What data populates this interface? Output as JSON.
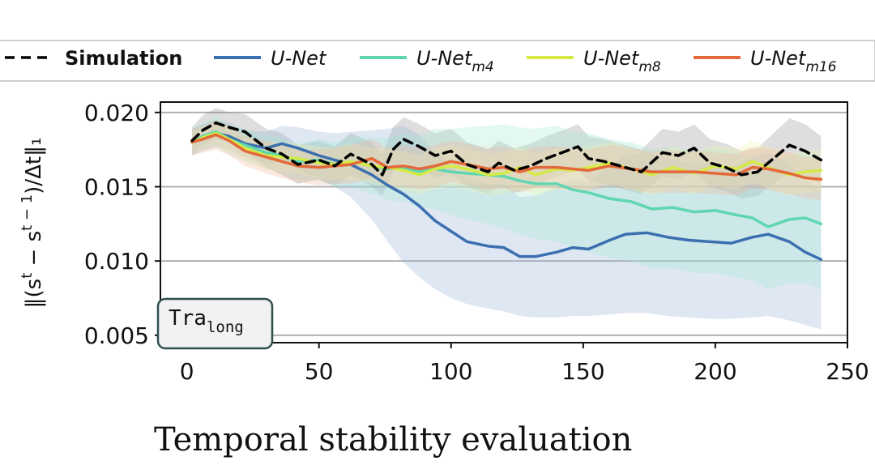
{
  "chart_data": {
    "type": "line",
    "title": "",
    "xlabel": "",
    "ylabel": "‖(s^t − s^(t−1))/Δt‖₁",
    "ylabel_parts": {
      "prefix": "‖(s",
      "sup1": "t",
      "mid": " − s",
      "sup2": "t − 1",
      "suffix": ")/Δt‖₁"
    },
    "xlim": [
      -10,
      250
    ],
    "ylim": [
      0.0045,
      0.0207
    ],
    "xticks": [
      0,
      50,
      100,
      150,
      200,
      250
    ],
    "yticks": [
      0.005,
      0.01,
      0.015,
      0.02
    ],
    "ytick_labels": [
      "0.005",
      "0.010",
      "0.015",
      "0.020"
    ],
    "grid": "horizontal",
    "legend_position": "top",
    "badge": {
      "text": "Tra",
      "subscript": "long"
    },
    "series": [
      {
        "name": "Simulation",
        "color": "#000000",
        "dashed": true,
        "x": [
          2,
          6,
          11,
          16,
          22,
          30,
          36,
          42,
          50,
          56,
          62,
          70,
          74,
          78,
          82,
          88,
          94,
          100,
          106,
          114,
          118,
          124,
          130,
          136,
          142,
          148,
          152,
          158,
          164,
          172,
          180,
          186,
          192,
          198,
          204,
          210,
          216,
          222,
          228,
          234,
          240
        ],
        "y": [
          0.0181,
          0.0188,
          0.0193,
          0.019,
          0.0187,
          0.0176,
          0.0172,
          0.0165,
          0.0168,
          0.0164,
          0.0172,
          0.0165,
          0.0158,
          0.0175,
          0.0182,
          0.0177,
          0.0171,
          0.0174,
          0.0165,
          0.016,
          0.0166,
          0.0161,
          0.0164,
          0.0169,
          0.0173,
          0.0177,
          0.0169,
          0.0167,
          0.0164,
          0.016,
          0.0173,
          0.0171,
          0.0176,
          0.0166,
          0.0163,
          0.0158,
          0.016,
          0.0169,
          0.0178,
          0.0174,
          0.0168
        ],
        "band_low": [
          0.0172,
          0.0178,
          0.0182,
          0.018,
          0.0175,
          0.0163,
          0.0158,
          0.0152,
          0.0155,
          0.0151,
          0.0158,
          0.015,
          0.0144,
          0.016,
          0.0167,
          0.0162,
          0.0156,
          0.0159,
          0.015,
          0.0145,
          0.0151,
          0.0146,
          0.0149,
          0.0154,
          0.0158,
          0.0162,
          0.0154,
          0.0152,
          0.0149,
          0.0145,
          0.0157,
          0.0155,
          0.016,
          0.015,
          0.0147,
          0.0142,
          0.0144,
          0.0152,
          0.016,
          0.0156,
          0.0152
        ],
        "band_high": [
          0.019,
          0.0198,
          0.0203,
          0.02,
          0.0199,
          0.0189,
          0.0186,
          0.0178,
          0.0181,
          0.0177,
          0.0186,
          0.018,
          0.0172,
          0.019,
          0.0197,
          0.0192,
          0.0186,
          0.0189,
          0.018,
          0.0175,
          0.0181,
          0.0176,
          0.0179,
          0.0184,
          0.0188,
          0.0192,
          0.0184,
          0.0182,
          0.0179,
          0.0175,
          0.0189,
          0.0187,
          0.0192,
          0.0182,
          0.0179,
          0.0174,
          0.0176,
          0.0186,
          0.0196,
          0.0192,
          0.0184
        ],
        "band_color": "#888888"
      },
      {
        "name": "U-Net",
        "color": "#3b6fb0",
        "dashed": false,
        "x": [
          2,
          6,
          11,
          16,
          22,
          30,
          36,
          42,
          50,
          56,
          62,
          70,
          76,
          82,
          88,
          94,
          100,
          106,
          114,
          120,
          126,
          132,
          140,
          146,
          152,
          160,
          166,
          174,
          182,
          190,
          198,
          206,
          214,
          220,
          228,
          234,
          240
        ],
        "y": [
          0.018,
          0.0183,
          0.0186,
          0.0184,
          0.0179,
          0.0176,
          0.0179,
          0.0176,
          0.0171,
          0.0168,
          0.0165,
          0.0158,
          0.0151,
          0.0145,
          0.0137,
          0.0127,
          0.012,
          0.0113,
          0.011,
          0.0109,
          0.0103,
          0.0103,
          0.0106,
          0.0109,
          0.0108,
          0.0114,
          0.0118,
          0.0119,
          0.0116,
          0.0114,
          0.0113,
          0.0112,
          0.0116,
          0.0118,
          0.0113,
          0.0106,
          0.0101
        ],
        "band_low": [
          0.0171,
          0.0174,
          0.0177,
          0.0175,
          0.017,
          0.0165,
          0.0167,
          0.0162,
          0.0155,
          0.015,
          0.0143,
          0.0128,
          0.0113,
          0.0099,
          0.0089,
          0.0081,
          0.0075,
          0.0071,
          0.0068,
          0.0066,
          0.0063,
          0.0062,
          0.0062,
          0.0063,
          0.0063,
          0.0064,
          0.0065,
          0.0065,
          0.0063,
          0.0062,
          0.0061,
          0.0061,
          0.0062,
          0.0063,
          0.006,
          0.0057,
          0.0054
        ],
        "band_high": [
          0.0189,
          0.0192,
          0.0195,
          0.0193,
          0.0188,
          0.0187,
          0.0191,
          0.019,
          0.0187,
          0.0186,
          0.0187,
          0.0188,
          0.0189,
          0.0191,
          0.0185,
          0.0173,
          0.0165,
          0.0155,
          0.0152,
          0.0152,
          0.0143,
          0.0144,
          0.015,
          0.0155,
          0.0153,
          0.0164,
          0.0171,
          0.0173,
          0.0169,
          0.0166,
          0.0165,
          0.0163,
          0.017,
          0.0173,
          0.0166,
          0.0155,
          0.0148
        ],
        "band_color": "#9db3d9"
      },
      {
        "name": "U-Net_m4",
        "name_base": "U-Net",
        "name_sub": "m4",
        "color": "#5fd6b0",
        "dashed": false,
        "x": [
          2,
          6,
          11,
          16,
          22,
          30,
          36,
          42,
          50,
          56,
          62,
          70,
          76,
          82,
          88,
          94,
          100,
          106,
          114,
          120,
          126,
          132,
          140,
          146,
          152,
          160,
          168,
          176,
          184,
          192,
          200,
          208,
          214,
          220,
          228,
          234,
          240
        ],
        "y": [
          0.018,
          0.0184,
          0.0187,
          0.0182,
          0.0178,
          0.0173,
          0.0171,
          0.0167,
          0.0168,
          0.0165,
          0.0167,
          0.0164,
          0.0162,
          0.0163,
          0.016,
          0.0162,
          0.016,
          0.0159,
          0.0158,
          0.0157,
          0.0154,
          0.0152,
          0.0152,
          0.0148,
          0.0146,
          0.0142,
          0.014,
          0.0135,
          0.0136,
          0.0133,
          0.0134,
          0.0131,
          0.0129,
          0.0123,
          0.0128,
          0.0129,
          0.0125
        ],
        "band_low": [
          0.0171,
          0.0175,
          0.0177,
          0.0172,
          0.0167,
          0.0162,
          0.0159,
          0.0155,
          0.0154,
          0.015,
          0.015,
          0.0145,
          0.0141,
          0.014,
          0.0136,
          0.0135,
          0.0131,
          0.0128,
          0.0125,
          0.0122,
          0.0118,
          0.0115,
          0.0113,
          0.0109,
          0.0106,
          0.0102,
          0.01,
          0.0095,
          0.0095,
          0.0092,
          0.0092,
          0.0089,
          0.0087,
          0.0081,
          0.0085,
          0.0085,
          0.0081
        ],
        "band_high": [
          0.0189,
          0.0193,
          0.0197,
          0.0192,
          0.0189,
          0.0184,
          0.0183,
          0.0179,
          0.0182,
          0.018,
          0.0184,
          0.0183,
          0.0183,
          0.0186,
          0.0184,
          0.0189,
          0.0189,
          0.019,
          0.0191,
          0.0192,
          0.019,
          0.0189,
          0.0191,
          0.0187,
          0.0186,
          0.0182,
          0.018,
          0.0175,
          0.0177,
          0.0174,
          0.0176,
          0.0173,
          0.0171,
          0.0165,
          0.0171,
          0.0173,
          0.0169
        ],
        "band_color": "#a6e8d3"
      },
      {
        "name": "U-Net_m8",
        "name_base": "U-Net",
        "name_sub": "m8",
        "color": "#d5ea45",
        "dashed": false,
        "x": [
          2,
          6,
          11,
          16,
          22,
          30,
          36,
          42,
          50,
          56,
          62,
          70,
          76,
          82,
          88,
          94,
          100,
          106,
          114,
          120,
          126,
          132,
          140,
          146,
          152,
          160,
          168,
          176,
          184,
          192,
          200,
          208,
          214,
          220,
          228,
          234,
          240
        ],
        "y": [
          0.018,
          0.0183,
          0.0186,
          0.0182,
          0.0176,
          0.0171,
          0.017,
          0.0169,
          0.0166,
          0.0165,
          0.0167,
          0.0164,
          0.0163,
          0.0161,
          0.0158,
          0.0162,
          0.0164,
          0.0162,
          0.0158,
          0.0159,
          0.0163,
          0.0158,
          0.0162,
          0.0161,
          0.0163,
          0.0166,
          0.0162,
          0.0158,
          0.0163,
          0.0159,
          0.0164,
          0.0162,
          0.0167,
          0.0163,
          0.0158,
          0.016,
          0.0161
        ],
        "band_low": [
          0.0173,
          0.0176,
          0.0178,
          0.0174,
          0.0168,
          0.0162,
          0.016,
          0.0159,
          0.0155,
          0.0154,
          0.0155,
          0.0152,
          0.015,
          0.0148,
          0.0145,
          0.0148,
          0.015,
          0.0148,
          0.0144,
          0.0145,
          0.0149,
          0.0144,
          0.0148,
          0.0147,
          0.0149,
          0.0152,
          0.0148,
          0.0144,
          0.0149,
          0.0145,
          0.015,
          0.0148,
          0.0153,
          0.0149,
          0.0144,
          0.0146,
          0.0147
        ],
        "band_high": [
          0.0187,
          0.019,
          0.0194,
          0.019,
          0.0184,
          0.018,
          0.018,
          0.0179,
          0.0177,
          0.0176,
          0.0179,
          0.0176,
          0.0176,
          0.0174,
          0.0171,
          0.0176,
          0.0178,
          0.0176,
          0.0172,
          0.0173,
          0.0177,
          0.0172,
          0.0176,
          0.0175,
          0.0177,
          0.018,
          0.0176,
          0.0172,
          0.0177,
          0.0173,
          0.0178,
          0.0176,
          0.0181,
          0.0177,
          0.0172,
          0.0174,
          0.0175
        ],
        "band_color": "#eef5b5"
      },
      {
        "name": "U-Net_m16",
        "name_base": "U-Net",
        "name_sub": "m16",
        "color": "#e4693a",
        "dashed": false,
        "x": [
          2,
          6,
          11,
          16,
          22,
          30,
          36,
          42,
          50,
          56,
          62,
          70,
          76,
          82,
          88,
          94,
          100,
          106,
          114,
          120,
          126,
          132,
          140,
          146,
          152,
          160,
          168,
          176,
          184,
          192,
          200,
          208,
          214,
          220,
          228,
          234,
          240
        ],
        "y": [
          0.018,
          0.0182,
          0.0185,
          0.0181,
          0.0174,
          0.017,
          0.0167,
          0.0164,
          0.0163,
          0.0164,
          0.0165,
          0.0169,
          0.0163,
          0.0164,
          0.0162,
          0.0164,
          0.0167,
          0.0165,
          0.0162,
          0.0163,
          0.016,
          0.0163,
          0.0163,
          0.0162,
          0.0161,
          0.0164,
          0.0162,
          0.016,
          0.016,
          0.016,
          0.0159,
          0.0158,
          0.0163,
          0.0162,
          0.0159,
          0.0156,
          0.0155
        ],
        "band_low": [
          0.0171,
          0.0173,
          0.0175,
          0.0171,
          0.0164,
          0.0159,
          0.0156,
          0.0153,
          0.0151,
          0.0152,
          0.0152,
          0.0156,
          0.015,
          0.015,
          0.0148,
          0.015,
          0.0153,
          0.0151,
          0.0148,
          0.0149,
          0.0146,
          0.0149,
          0.0149,
          0.0148,
          0.0147,
          0.015,
          0.0148,
          0.0146,
          0.0146,
          0.0146,
          0.0145,
          0.0144,
          0.0149,
          0.0148,
          0.0145,
          0.0142,
          0.0141
        ],
        "band_high": [
          0.0189,
          0.0191,
          0.0195,
          0.0191,
          0.0184,
          0.0181,
          0.0178,
          0.0175,
          0.0175,
          0.0176,
          0.0178,
          0.0182,
          0.0176,
          0.0178,
          0.0176,
          0.0178,
          0.0181,
          0.0179,
          0.0176,
          0.0177,
          0.0174,
          0.0177,
          0.0177,
          0.0176,
          0.0175,
          0.0178,
          0.0176,
          0.0174,
          0.0174,
          0.0174,
          0.0173,
          0.0172,
          0.0177,
          0.0176,
          0.0173,
          0.017,
          0.0169
        ],
        "band_color": "#f3b79b"
      }
    ]
  },
  "caption": "Temporal stability evaluation"
}
